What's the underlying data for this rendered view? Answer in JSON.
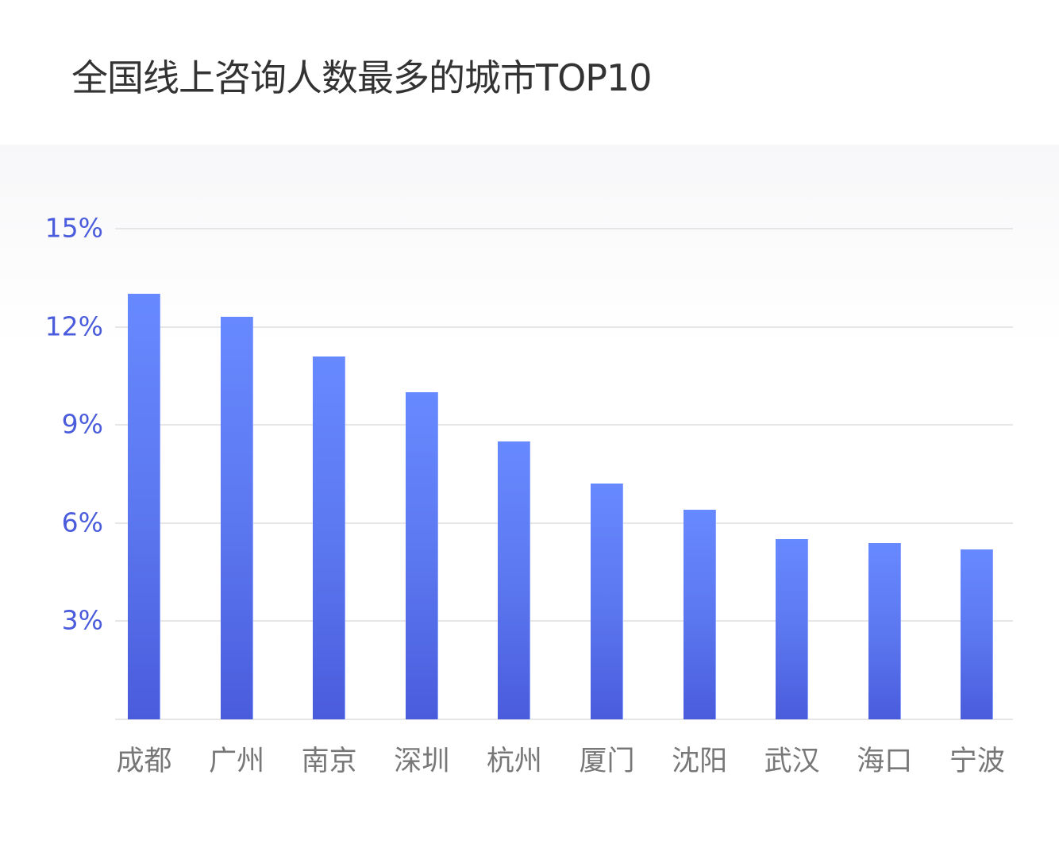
{
  "title": "全国线上咨询人数最多的城市TOP10",
  "chart_data": {
    "type": "bar",
    "title": "全国线上咨询人数最多的城市TOP10",
    "xlabel": "",
    "ylabel": "",
    "categories": [
      "成都",
      "广州",
      "南京",
      "深圳",
      "杭州",
      "厦门",
      "沈阳",
      "武汉",
      "海口",
      "宁波"
    ],
    "values": [
      13.0,
      12.3,
      11.1,
      10.0,
      8.5,
      7.2,
      6.4,
      5.5,
      5.4,
      5.2
    ],
    "unit": "%",
    "ylim": [
      0,
      15
    ],
    "yticks": [
      "3%",
      "6%",
      "9%",
      "12%",
      "15%"
    ],
    "grid": true,
    "legend": null,
    "colors": {
      "bar_top": "#6789ff",
      "bar_bottom": "#4a5cdc",
      "tick_label": "#4a5cdc",
      "category_label": "#777777",
      "title": "#333333"
    }
  }
}
